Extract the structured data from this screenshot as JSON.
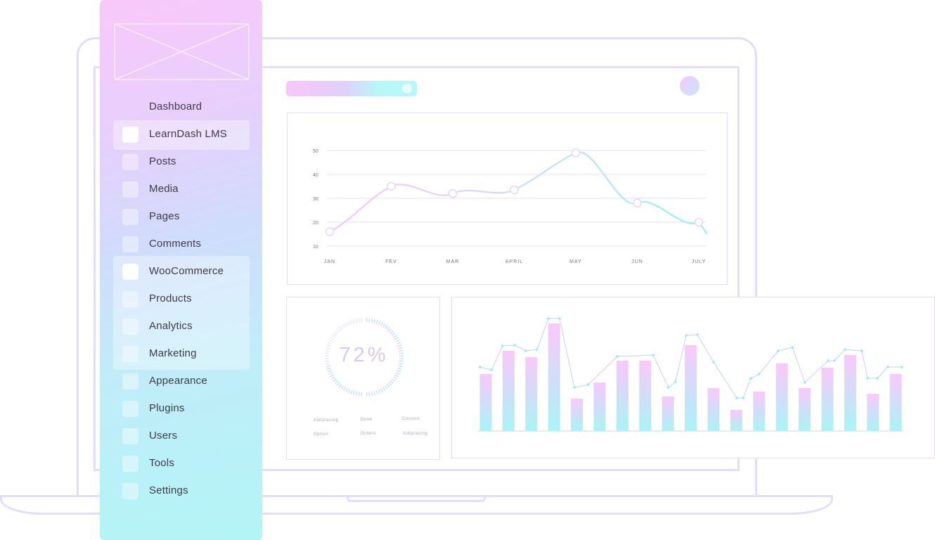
{
  "sidebar": {
    "items": [
      {
        "label": "Dashboard",
        "checkbox": false
      },
      {
        "label": "LearnDash LMS",
        "checkbox": true,
        "active": true
      },
      {
        "label": "Posts",
        "checkbox": true
      },
      {
        "label": "Media",
        "checkbox": true
      },
      {
        "label": "Pages",
        "checkbox": true
      },
      {
        "label": "Comments",
        "checkbox": true
      },
      {
        "label": "WooCommerce",
        "checkbox": true,
        "active": true
      },
      {
        "label": "Products",
        "checkbox": true
      },
      {
        "label": "Analytics",
        "checkbox": true
      },
      {
        "label": "Marketing",
        "checkbox": true
      },
      {
        "label": "Appearance",
        "checkbox": true
      },
      {
        "label": "Plugins",
        "checkbox": true
      },
      {
        "label": "Users",
        "checkbox": true
      },
      {
        "label": "Tools",
        "checkbox": true
      },
      {
        "label": "Settings",
        "checkbox": true
      }
    ]
  },
  "donut": {
    "value_label": "72%",
    "percent": 72,
    "legend": [
      "Aldiplacing",
      "Done",
      "Convert",
      "Option",
      "Orders",
      "Aldiplacing"
    ]
  },
  "colors": {
    "pink": "#f9c6fb",
    "cyan": "#b2f5f6",
    "outline": "#e4dcfb",
    "grid": "#ece2fb"
  },
  "chart_data": [
    {
      "type": "line",
      "categories": [
        "JAN",
        "FEV",
        "MAR",
        "APRIL",
        "MAY",
        "JUN",
        "JULY"
      ],
      "values": [
        16,
        35,
        32,
        33.5,
        49,
        28,
        20
      ],
      "yticks": [
        10,
        20,
        30,
        40,
        50
      ],
      "ylim": [
        10,
        50
      ],
      "grid": true
    },
    {
      "type": "bar",
      "values": [
        81,
        114,
        105,
        153,
        46,
        69,
        100,
        100,
        49,
        122,
        61,
        30,
        56,
        96,
        61,
        90,
        108,
        53,
        81
      ],
      "line": [
        [
          -0.25,
          91
        ],
        [
          0.25,
          87
        ],
        [
          0.74,
          121
        ],
        [
          1.27,
          122
        ],
        [
          1.76,
          114
        ],
        [
          2.25,
          116
        ],
        [
          2.75,
          160
        ],
        [
          3.24,
          160
        ],
        [
          3.89,
          62
        ],
        [
          4.5,
          66
        ],
        [
          5.77,
          106
        ],
        [
          7.35,
          108
        ],
        [
          8.02,
          62
        ],
        [
          8.33,
          70
        ],
        [
          8.8,
          136
        ],
        [
          9.29,
          137
        ],
        [
          10,
          98
        ],
        [
          11.02,
          47
        ],
        [
          11.3,
          47
        ],
        [
          11.64,
          75
        ],
        [
          12,
          81
        ],
        [
          12.84,
          114
        ],
        [
          13.46,
          119
        ],
        [
          14.01,
          69
        ],
        [
          15.03,
          100
        ],
        [
          15.31,
          100
        ],
        [
          15.77,
          116
        ],
        [
          16.51,
          114
        ],
        [
          16.76,
          75
        ],
        [
          17.19,
          75
        ],
        [
          17.65,
          91
        ],
        [
          18.27,
          91
        ]
      ]
    }
  ]
}
